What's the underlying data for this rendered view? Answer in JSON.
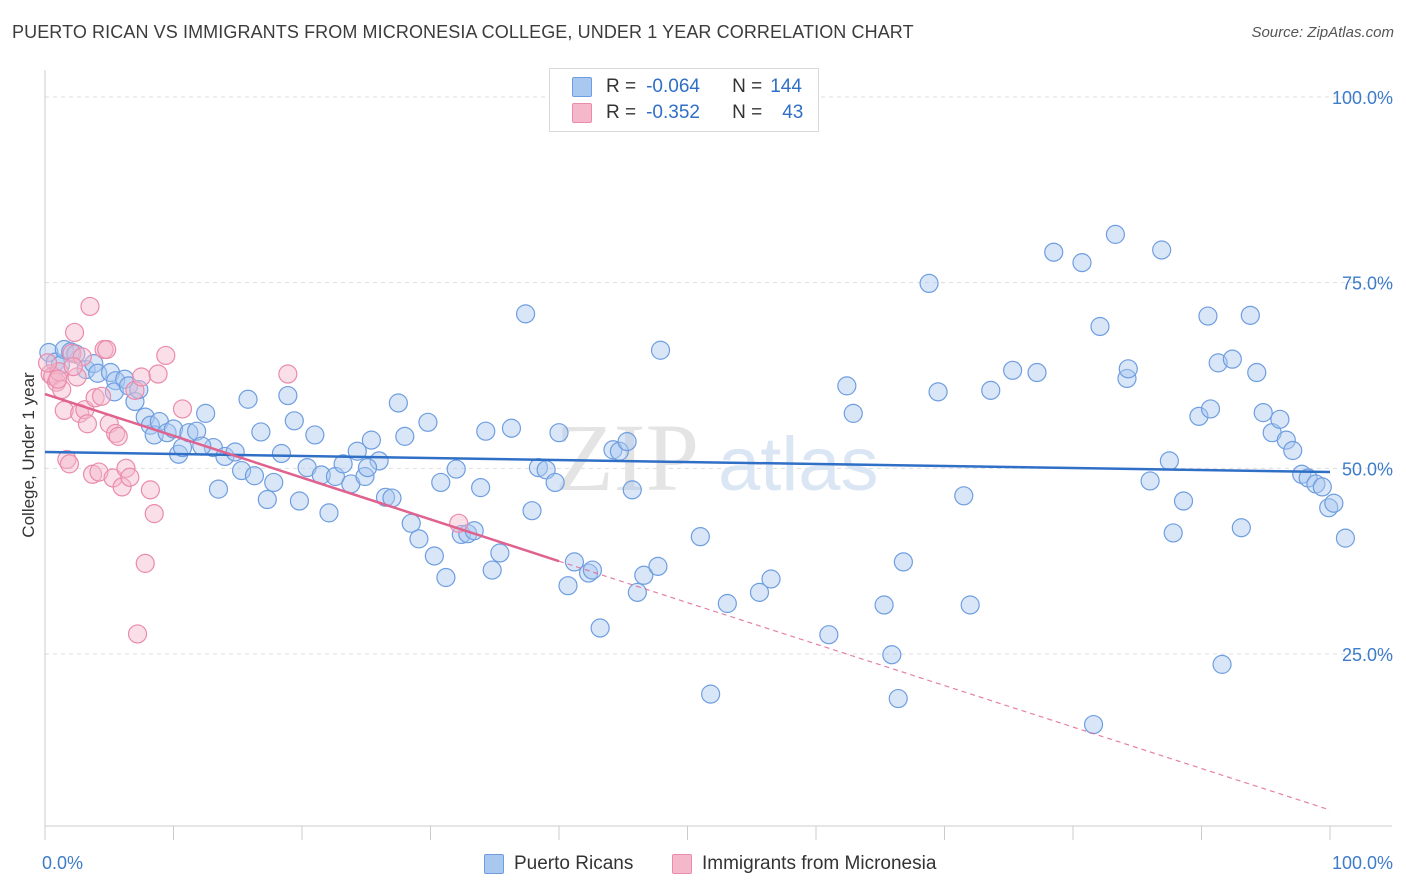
{
  "header": {
    "title": "PUERTO RICAN VS IMMIGRANTS FROM MICRONESIA COLLEGE, UNDER 1 YEAR CORRELATION CHART",
    "source": "Source: ZipAtlas.com"
  },
  "legend": {
    "series1": {
      "r_label": "R =",
      "r_value": "-0.064",
      "n_label": "N =",
      "n_value": "144"
    },
    "series2": {
      "r_label": "R =",
      "r_value": "-0.352",
      "n_label": "N =",
      "n_value": "43"
    }
  },
  "bottom_legend": {
    "series1": "Puerto Ricans",
    "series2": "Immigrants from Micronesia"
  },
  "watermark": {
    "zip": "ZIP",
    "atlas": "atlas"
  },
  "colors": {
    "blue_fill": "#a9c8ef",
    "blue_stroke": "#6f9ee0",
    "blue_line": "#2f6fc6",
    "pink_fill": "#f5b8cb",
    "pink_stroke": "#ea8bab",
    "pink_line": "#e0628f",
    "grid": "#dddddd",
    "axis_label": "#3d7cc9"
  },
  "chart_data": {
    "type": "scatter",
    "title": "PUERTO RICAN VS IMMIGRANTS FROM MICRONESIA COLLEGE, UNDER 1 YEAR CORRELATION CHART",
    "xlabel": "",
    "ylabel": "College, Under 1 year",
    "xlim": [
      0,
      100
    ],
    "ylim": [
      0,
      105
    ],
    "x_tick_labels": [
      "0.0%",
      "100.0%"
    ],
    "y_ticks": [
      25,
      50,
      75,
      100
    ],
    "y_tick_labels": [
      "25.0%",
      "50.0%",
      "75.0%",
      "100.0%"
    ],
    "series": [
      {
        "name": "Puerto Ricans",
        "r": -0.064,
        "n": 144,
        "trend": {
          "x": [
            0,
            100
          ],
          "y": [
            52.2,
            49.5
          ]
        },
        "points": [
          [
            0.3,
            65.6
          ],
          [
            0.8,
            64.3
          ],
          [
            1.2,
            63.9
          ],
          [
            1.5,
            66.0
          ],
          [
            2.0,
            65.7
          ],
          [
            2.4,
            65.4
          ],
          [
            3.2,
            63.3
          ],
          [
            3.8,
            64.1
          ],
          [
            4.1,
            62.8
          ],
          [
            5.1,
            62.9
          ],
          [
            5.5,
            61.8
          ],
          [
            5.4,
            60.3
          ],
          [
            6.2,
            62.0
          ],
          [
            6.5,
            61.1
          ],
          [
            7.0,
            59.0
          ],
          [
            7.3,
            60.6
          ],
          [
            7.8,
            56.9
          ],
          [
            8.2,
            55.8
          ],
          [
            8.5,
            54.5
          ],
          [
            8.9,
            56.3
          ],
          [
            9.5,
            54.8
          ],
          [
            10.0,
            55.3
          ],
          [
            10.4,
            51.9
          ],
          [
            10.7,
            52.8
          ],
          [
            11.2,
            54.8
          ],
          [
            11.8,
            55.0
          ],
          [
            12.5,
            57.4
          ],
          [
            13.1,
            52.8
          ],
          [
            13.5,
            47.2
          ],
          [
            14.0,
            51.6
          ],
          [
            14.8,
            52.2
          ],
          [
            15.3,
            49.7
          ],
          [
            15.8,
            59.3
          ],
          [
            16.3,
            49.0
          ],
          [
            16.8,
            54.9
          ],
          [
            17.3,
            45.8
          ],
          [
            17.8,
            48.1
          ],
          [
            18.4,
            52.0
          ],
          [
            18.9,
            59.8
          ],
          [
            19.4,
            56.4
          ],
          [
            19.8,
            45.6
          ],
          [
            20.4,
            50.1
          ],
          [
            21.0,
            54.5
          ],
          [
            21.5,
            49.1
          ],
          [
            22.1,
            44.0
          ],
          [
            22.6,
            48.9
          ],
          [
            23.2,
            50.6
          ],
          [
            23.8,
            47.9
          ],
          [
            24.3,
            52.3
          ],
          [
            24.9,
            48.9
          ],
          [
            25.4,
            53.8
          ],
          [
            26.0,
            51.0
          ],
          [
            26.5,
            46.1
          ],
          [
            27.0,
            46.0
          ],
          [
            27.5,
            58.8
          ],
          [
            28.0,
            54.3
          ],
          [
            28.5,
            42.6
          ],
          [
            29.1,
            40.5
          ],
          [
            29.8,
            56.2
          ],
          [
            30.3,
            38.2
          ],
          [
            30.8,
            48.1
          ],
          [
            31.2,
            35.3
          ],
          [
            32.0,
            49.9
          ],
          [
            32.4,
            41.1
          ],
          [
            32.9,
            41.2
          ],
          [
            33.4,
            41.6
          ],
          [
            33.9,
            47.4
          ],
          [
            34.3,
            55.0
          ],
          [
            34.8,
            36.3
          ],
          [
            35.4,
            38.6
          ],
          [
            36.3,
            55.4
          ],
          [
            37.4,
            70.8
          ],
          [
            37.9,
            44.3
          ],
          [
            38.4,
            50.1
          ],
          [
            39.0,
            49.8
          ],
          [
            39.7,
            48.1
          ],
          [
            40.0,
            54.8
          ],
          [
            40.7,
            34.2
          ],
          [
            41.2,
            37.4
          ],
          [
            42.3,
            35.9
          ],
          [
            42.6,
            36.3
          ],
          [
            43.2,
            28.5
          ],
          [
            44.2,
            52.5
          ],
          [
            44.7,
            52.3
          ],
          [
            45.3,
            53.6
          ],
          [
            45.7,
            47.1
          ],
          [
            46.1,
            33.3
          ],
          [
            46.6,
            35.6
          ],
          [
            47.7,
            36.8
          ],
          [
            47.9,
            65.9
          ],
          [
            51.0,
            40.8
          ],
          [
            51.8,
            19.6
          ],
          [
            53.1,
            31.8
          ],
          [
            55.6,
            33.3
          ],
          [
            56.5,
            35.1
          ],
          [
            61.0,
            27.6
          ],
          [
            62.4,
            61.1
          ],
          [
            65.3,
            31.6
          ],
          [
            65.9,
            24.9
          ],
          [
            66.4,
            19.0
          ],
          [
            66.8,
            37.4
          ],
          [
            68.8,
            74.9
          ],
          [
            69.5,
            60.3
          ],
          [
            71.5,
            46.3
          ],
          [
            72.0,
            31.6
          ],
          [
            73.6,
            60.5
          ],
          [
            75.3,
            63.2
          ],
          [
            77.2,
            62.9
          ],
          [
            78.5,
            79.1
          ],
          [
            80.7,
            77.7
          ],
          [
            81.6,
            15.5
          ],
          [
            82.1,
            69.1
          ],
          [
            83.3,
            81.5
          ],
          [
            84.2,
            62.1
          ],
          [
            84.3,
            63.4
          ],
          [
            86.0,
            48.3
          ],
          [
            86.9,
            79.4
          ],
          [
            87.5,
            51.0
          ],
          [
            87.8,
            41.3
          ],
          [
            88.6,
            45.6
          ],
          [
            89.8,
            57.0
          ],
          [
            90.5,
            70.5
          ],
          [
            90.7,
            58.0
          ],
          [
            91.3,
            64.2
          ],
          [
            91.6,
            23.6
          ],
          [
            92.4,
            64.7
          ],
          [
            93.1,
            42.0
          ],
          [
            93.8,
            70.6
          ],
          [
            94.3,
            62.9
          ],
          [
            94.8,
            57.5
          ],
          [
            95.5,
            54.8
          ],
          [
            96.1,
            56.6
          ],
          [
            96.6,
            53.8
          ],
          [
            97.1,
            52.4
          ],
          [
            97.8,
            49.2
          ],
          [
            98.3,
            48.7
          ],
          [
            98.9,
            47.9
          ],
          [
            99.4,
            47.5
          ],
          [
            99.9,
            44.7
          ],
          [
            100.3,
            45.3
          ],
          [
            101.2,
            40.6
          ],
          [
            62.9,
            57.4
          ],
          [
            25.1,
            50.1
          ],
          [
            12.2,
            53.0
          ]
        ]
      },
      {
        "name": "Immigrants from Micronesia",
        "r": -0.352,
        "n": 43,
        "trend": {
          "x": [
            0,
            40.0
          ],
          "y": [
            60.0,
            37.5
          ]
        },
        "trend_extension": {
          "x": [
            40.0,
            100
          ],
          "y": [
            37.5,
            4.0
          ]
        },
        "points": [
          [
            0.4,
            62.7
          ],
          [
            0.6,
            62.4
          ],
          [
            0.9,
            61.6
          ],
          [
            1.1,
            63.0
          ],
          [
            1.3,
            60.6
          ],
          [
            1.5,
            57.8
          ],
          [
            1.7,
            51.2
          ],
          [
            1.9,
            50.6
          ],
          [
            2.1,
            65.5
          ],
          [
            2.3,
            68.3
          ],
          [
            2.5,
            62.3
          ],
          [
            2.7,
            57.4
          ],
          [
            2.9,
            65.0
          ],
          [
            3.1,
            57.9
          ],
          [
            3.3,
            56.0
          ],
          [
            3.5,
            71.8
          ],
          [
            3.7,
            49.2
          ],
          [
            3.9,
            59.5
          ],
          [
            4.2,
            49.5
          ],
          [
            4.4,
            59.7
          ],
          [
            4.6,
            66.0
          ],
          [
            4.8,
            66.0
          ],
          [
            5.0,
            56.0
          ],
          [
            5.3,
            48.7
          ],
          [
            5.5,
            54.7
          ],
          [
            5.7,
            54.3
          ],
          [
            6.0,
            47.5
          ],
          [
            6.3,
            50.0
          ],
          [
            6.6,
            48.8
          ],
          [
            7.0,
            60.5
          ],
          [
            7.2,
            27.7
          ],
          [
            7.5,
            62.3
          ],
          [
            7.8,
            37.2
          ],
          [
            8.2,
            47.1
          ],
          [
            8.5,
            43.9
          ],
          [
            8.8,
            62.7
          ],
          [
            9.4,
            65.2
          ],
          [
            10.7,
            58.0
          ],
          [
            18.9,
            62.7
          ],
          [
            32.2,
            42.6
          ],
          [
            0.2,
            64.2
          ],
          [
            1.0,
            62.0
          ],
          [
            2.2,
            63.7
          ]
        ]
      }
    ]
  }
}
